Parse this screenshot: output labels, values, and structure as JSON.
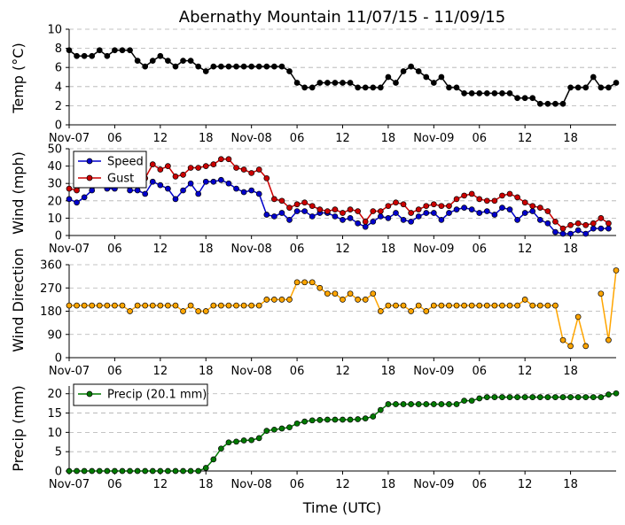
{
  "title": "Abernathy Mountain 11/07/15 - 11/09/15",
  "xlabel": "Time (UTC)",
  "x_tick_labels": [
    "Nov-07",
    "06",
    "12",
    "18",
    "Nov-08",
    "06",
    "12",
    "18",
    "Nov-09",
    "06",
    "12",
    "18"
  ],
  "x_tick_hours": [
    0,
    6,
    12,
    18,
    24,
    30,
    36,
    42,
    48,
    54,
    60,
    66
  ],
  "colors": {
    "temp": "#000000",
    "speed": "#0000cc",
    "gust": "#cc0000",
    "direction": "#ffa500",
    "precip": "#007a00"
  },
  "chart_data": [
    {
      "type": "line",
      "title": "Temp",
      "ylabel": "Temp (°C)",
      "ylim": [
        0,
        10
      ],
      "yticks": [
        0,
        2,
        4,
        6,
        8,
        10
      ],
      "x_hours_start": 0,
      "x_hours_step": 1,
      "series": [
        {
          "name": "Temp",
          "values": [
            7.8,
            7.2,
            7.2,
            7.2,
            7.8,
            7.2,
            7.8,
            7.8,
            7.8,
            6.7,
            6.1,
            6.7,
            7.2,
            6.7,
            6.1,
            6.7,
            6.7,
            6.1,
            5.6,
            6.1,
            6.1,
            6.1,
            6.1,
            6.1,
            6.1,
            6.1,
            6.1,
            6.1,
            6.1,
            5.6,
            4.4,
            3.9,
            3.9,
            4.4,
            4.4,
            4.4,
            4.4,
            4.4,
            3.9,
            3.9,
            3.9,
            3.9,
            5.0,
            4.4,
            5.6,
            6.1,
            5.6,
            5.0,
            4.4,
            5.0,
            3.9,
            3.9,
            3.3,
            3.3,
            3.3,
            3.3,
            3.3,
            3.3,
            3.3,
            2.8,
            2.8,
            2.8,
            2.2,
            2.2,
            2.2,
            2.2,
            3.9,
            3.9,
            3.9,
            5.0,
            3.9,
            3.9,
            4.4
          ]
        }
      ]
    },
    {
      "type": "line",
      "title": "Wind",
      "ylabel": "Wind (mph)",
      "ylim": [
        0,
        50
      ],
      "yticks": [
        0,
        10,
        20,
        30,
        40,
        50
      ],
      "x_hours_start": 0,
      "x_hours_step": 1,
      "legend": "top-left",
      "series": [
        {
          "name": "Speed",
          "values": [
            21,
            19,
            22,
            26,
            31,
            27,
            27,
            31,
            26,
            26,
            24,
            31,
            29,
            27,
            21,
            26,
            30,
            24,
            31,
            31,
            32,
            30,
            27,
            25,
            26,
            24,
            12,
            11,
            13,
            9,
            14,
            14,
            11,
            13,
            13,
            11,
            9,
            10,
            7,
            5,
            8,
            11,
            10,
            13,
            9,
            8,
            11,
            13,
            13,
            9,
            13,
            15,
            16,
            15,
            13,
            14,
            12,
            16,
            15,
            9,
            13,
            14,
            9,
            7,
            2,
            1,
            1,
            3,
            1,
            4,
            4,
            4
          ]
        },
        {
          "name": "Gust",
          "values": [
            27,
            26,
            30,
            35,
            36,
            34,
            34,
            35,
            33,
            29,
            33,
            41,
            38,
            40,
            34,
            35,
            39,
            39,
            40,
            41,
            44,
            44,
            39,
            38,
            36,
            38,
            33,
            21,
            20,
            16,
            18,
            19,
            17,
            15,
            14,
            15,
            13,
            15,
            14,
            8,
            14,
            14,
            17,
            19,
            18,
            13,
            15,
            17,
            18,
            17,
            17,
            21,
            23,
            24,
            21,
            20,
            20,
            23,
            24,
            22,
            19,
            17,
            16,
            14,
            8,
            4,
            6,
            7,
            6,
            7,
            10,
            7
          ]
        }
      ]
    },
    {
      "type": "scatter",
      "title": "Wind Direction",
      "ylabel": "Wind Direction",
      "ylim": [
        0,
        360
      ],
      "yticks": [
        0,
        90,
        180,
        270,
        360
      ],
      "x_hours_start": 0,
      "x_hours_step": 1,
      "series": [
        {
          "name": "Direction",
          "values": [
            202,
            202,
            202,
            202,
            202,
            202,
            202,
            202,
            180,
            202,
            202,
            202,
            202,
            202,
            202,
            180,
            202,
            180,
            180,
            202,
            202,
            202,
            202,
            202,
            202,
            202,
            225,
            225,
            225,
            225,
            292,
            292,
            292,
            270,
            248,
            248,
            225,
            248,
            225,
            225,
            248,
            180,
            202,
            202,
            202,
            180,
            202,
            180,
            202,
            202,
            202,
            202,
            202,
            202,
            202,
            202,
            202,
            202,
            202,
            202,
            225,
            202,
            202,
            202,
            202,
            68,
            45,
            158,
            45,
            null,
            248,
            68,
            338
          ]
        }
      ]
    },
    {
      "type": "line",
      "title": "Precip",
      "ylabel": "Precip (mm)",
      "ylim": [
        0,
        22
      ],
      "yticks": [
        0,
        5,
        10,
        15,
        20
      ],
      "x_hours_start": 0,
      "x_hours_step": 1,
      "legend": "top-left",
      "series": [
        {
          "name": "Precip (20.1 mm)",
          "values": [
            0,
            0,
            0,
            0,
            0,
            0,
            0,
            0,
            0,
            0,
            0,
            0,
            0,
            0,
            0,
            0,
            0,
            0,
            0.8,
            3,
            5.8,
            7.4,
            7.6,
            7.9,
            8,
            8.5,
            10.4,
            10.7,
            11,
            11.3,
            12.3,
            12.8,
            13.1,
            13.2,
            13.3,
            13.3,
            13.3,
            13.3,
            13.4,
            13.6,
            14.1,
            15.8,
            17.3,
            17.3,
            17.3,
            17.3,
            17.3,
            17.3,
            17.3,
            17.3,
            17.3,
            17.3,
            18.2,
            18.2,
            18.8,
            19.1,
            19.1,
            19.1,
            19.1,
            19.1,
            19.1,
            19.1,
            19.1,
            19.1,
            19.1,
            19.1,
            19.1,
            19.1,
            19.1,
            19.1,
            19.1,
            19.8,
            20.1
          ]
        }
      ]
    }
  ]
}
